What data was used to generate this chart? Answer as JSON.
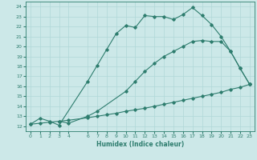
{
  "title": "",
  "xlabel": "Humidex (Indice chaleur)",
  "bg_color": "#cce8e8",
  "line_color": "#2e7d6e",
  "grid_color": "#b0d8d8",
  "xlim": [
    -0.5,
    23.5
  ],
  "ylim": [
    11.5,
    24.5
  ],
  "xticks": [
    0,
    1,
    2,
    3,
    4,
    6,
    7,
    8,
    9,
    10,
    11,
    12,
    13,
    14,
    15,
    16,
    17,
    18,
    19,
    20,
    21,
    22,
    23
  ],
  "yticks": [
    12,
    13,
    14,
    15,
    16,
    17,
    18,
    19,
    20,
    21,
    22,
    23,
    24
  ],
  "line1_x": [
    0,
    1,
    2,
    3,
    6,
    7,
    8,
    9,
    10,
    11,
    12,
    13,
    14,
    15,
    16,
    17,
    18,
    19,
    20,
    21,
    22,
    23
  ],
  "line1_y": [
    12.2,
    12.8,
    12.5,
    12.1,
    16.5,
    18.1,
    19.7,
    21.3,
    22.1,
    21.9,
    23.1,
    23.0,
    23.0,
    22.7,
    23.2,
    23.9,
    23.1,
    22.2,
    21.0,
    19.5,
    17.8,
    16.2
  ],
  "line2_x": [
    3,
    4,
    6,
    7,
    10,
    11,
    12,
    13,
    14,
    15,
    16,
    17,
    18,
    19,
    20,
    21,
    22,
    23
  ],
  "line2_y": [
    12.5,
    12.3,
    13.0,
    13.5,
    15.5,
    16.5,
    17.5,
    18.3,
    19.0,
    19.5,
    20.0,
    20.5,
    20.6,
    20.5,
    20.5,
    19.5,
    17.8,
    16.2
  ],
  "line3_x": [
    0,
    1,
    2,
    3,
    4,
    6,
    7,
    8,
    9,
    10,
    11,
    12,
    13,
    14,
    15,
    16,
    17,
    18,
    19,
    20,
    21,
    22,
    23
  ],
  "line3_y": [
    12.2,
    12.3,
    12.4,
    12.5,
    12.6,
    12.85,
    13.0,
    13.15,
    13.3,
    13.5,
    13.65,
    13.8,
    14.0,
    14.2,
    14.4,
    14.6,
    14.8,
    15.0,
    15.2,
    15.4,
    15.7,
    15.9,
    16.2
  ]
}
